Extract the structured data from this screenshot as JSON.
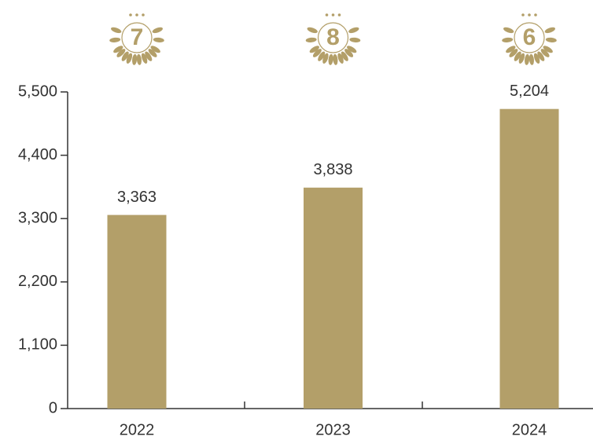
{
  "chart_data": {
    "type": "bar",
    "categories": [
      "2022",
      "2023",
      "2024"
    ],
    "values": [
      3363,
      3838,
      5204
    ],
    "value_labels": [
      "3,363",
      "3,838",
      "5,204"
    ],
    "rank_labels": [
      "7",
      "8",
      "6"
    ],
    "color": "#b39f69",
    "ylim": [
      0,
      5500
    ],
    "yticks": [
      0,
      {
        "value": 1100,
        "label": "1,100"
      },
      {
        "value": 2200,
        "label": "2,200"
      },
      {
        "value": 3300,
        "label": "3,300"
      },
      {
        "value": 4400,
        "label": "4,400"
      },
      {
        "value": 5500,
        "label": "5,500"
      }
    ]
  }
}
